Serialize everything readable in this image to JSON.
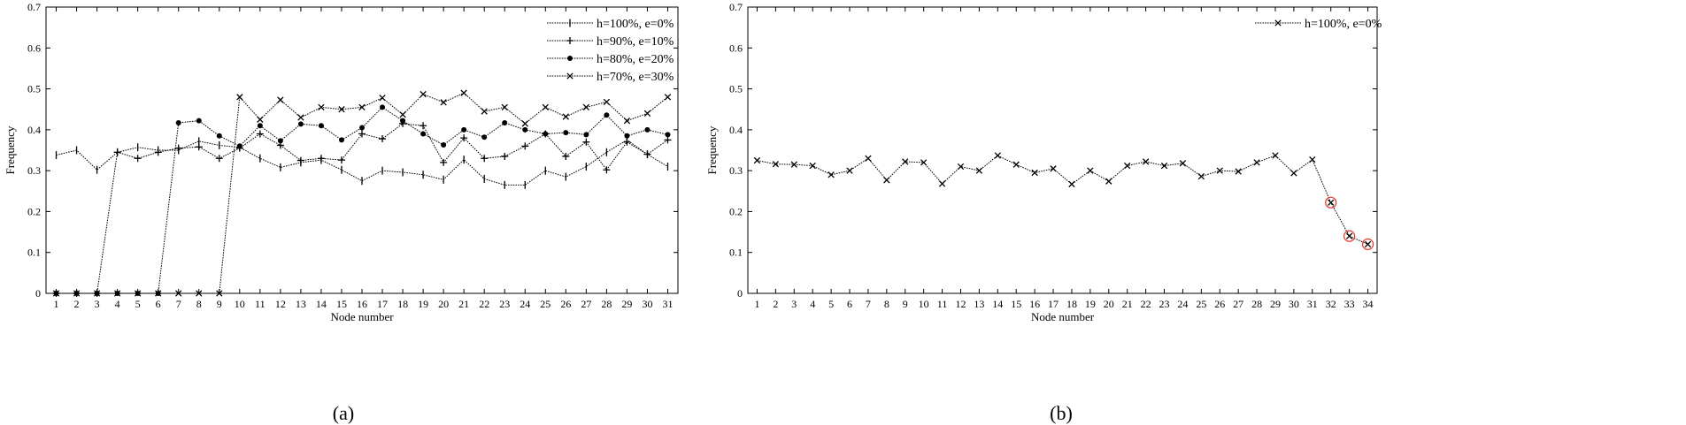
{
  "chart_data": [
    {
      "type": "line",
      "panel_label": "(a)",
      "xlabel": "Node number",
      "ylabel": "Frequency",
      "ylim": [
        0,
        0.7
      ],
      "yticks": [
        "0",
        "0.1",
        "0.2",
        "0.3",
        "0.4",
        "0.5",
        "0.6",
        "0.7"
      ],
      "x": [
        1,
        2,
        3,
        4,
        5,
        6,
        7,
        8,
        9,
        10,
        11,
        12,
        13,
        14,
        15,
        16,
        17,
        18,
        19,
        20,
        21,
        22,
        23,
        24,
        25,
        26,
        27,
        28,
        29,
        30,
        31
      ],
      "grid": false,
      "legend_position": "top-right",
      "series": [
        {
          "name": "h=100%, e=0%",
          "marker": "tick",
          "values": [
            0.338,
            0.35,
            0.302,
            0.345,
            0.357,
            0.35,
            0.35,
            0.372,
            0.362,
            0.357,
            0.33,
            0.308,
            0.32,
            0.326,
            0.302,
            0.275,
            0.3,
            0.296,
            0.29,
            0.278,
            0.327,
            0.28,
            0.265,
            0.265,
            0.3,
            0.285,
            0.31,
            0.345,
            0.375,
            0.34,
            0.31
          ]
        },
        {
          "name": "h=90%, e=10%",
          "marker": "plus",
          "values": [
            0,
            0,
            0,
            0.345,
            0.33,
            0.345,
            0.355,
            0.358,
            0.33,
            0.355,
            0.39,
            0.362,
            0.325,
            0.33,
            0.326,
            0.39,
            0.378,
            0.415,
            0.41,
            0.32,
            0.38,
            0.33,
            0.335,
            0.36,
            0.39,
            0.335,
            0.37,
            0.302,
            0.37,
            0.34,
            0.375
          ]
        },
        {
          "name": "h=80%, e=20%",
          "marker": "dot",
          "values": [
            0,
            0,
            0,
            0,
            0,
            0,
            0.417,
            0.422,
            0.385,
            0.36,
            0.41,
            0.373,
            0.414,
            0.41,
            0.375,
            0.405,
            0.455,
            0.422,
            0.39,
            0.363,
            0.4,
            0.382,
            0.417,
            0.4,
            0.39,
            0.393,
            0.388,
            0.436,
            0.385,
            0.4,
            0.388
          ]
        },
        {
          "name": "h=70%, e=30%",
          "marker": "cross",
          "values": [
            0,
            0,
            0,
            0,
            0,
            0,
            0,
            0,
            0,
            0.48,
            0.425,
            0.473,
            0.43,
            0.455,
            0.45,
            0.455,
            0.478,
            0.437,
            0.487,
            0.467,
            0.49,
            0.445,
            0.455,
            0.415,
            0.455,
            0.432,
            0.455,
            0.468,
            0.422,
            0.44,
            0.48
          ]
        }
      ]
    },
    {
      "type": "line",
      "panel_label": "(b)",
      "xlabel": "Node number",
      "ylabel": "Frequency",
      "ylim": [
        0,
        0.7
      ],
      "yticks": [
        "0",
        "0.1",
        "0.2",
        "0.3",
        "0.4",
        "0.5",
        "0.6",
        "0.7"
      ],
      "x": [
        1,
        2,
        3,
        4,
        5,
        6,
        7,
        8,
        9,
        10,
        11,
        12,
        13,
        14,
        15,
        16,
        17,
        18,
        19,
        20,
        21,
        22,
        23,
        24,
        25,
        26,
        27,
        28,
        29,
        30,
        31,
        32,
        33,
        34
      ],
      "grid": false,
      "legend_position": "top-right",
      "highlight_color": "#e8413a",
      "highlighted_x": [
        32,
        33,
        34
      ],
      "series": [
        {
          "name": "h=100%, e=0%",
          "marker": "cross",
          "values": [
            0.325,
            0.316,
            0.315,
            0.312,
            0.29,
            0.3,
            0.33,
            0.277,
            0.322,
            0.32,
            0.268,
            0.31,
            0.3,
            0.337,
            0.315,
            0.295,
            0.305,
            0.267,
            0.3,
            0.274,
            0.312,
            0.322,
            0.312,
            0.318,
            0.286,
            0.3,
            0.298,
            0.32,
            0.337,
            0.294,
            0.327,
            0.222,
            0.14,
            0.12
          ]
        }
      ]
    }
  ]
}
